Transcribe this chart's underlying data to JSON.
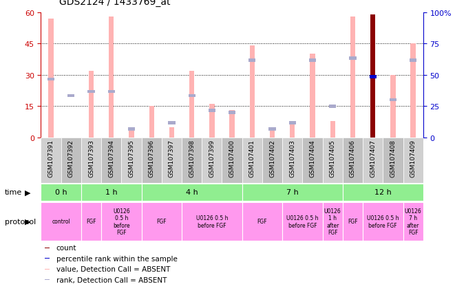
{
  "title": "GDS2124 / 1433769_at",
  "samples": [
    "GSM107391",
    "GSM107392",
    "GSM107393",
    "GSM107394",
    "GSM107395",
    "GSM107396",
    "GSM107397",
    "GSM107398",
    "GSM107399",
    "GSM107400",
    "GSM107401",
    "GSM107402",
    "GSM107403",
    "GSM107404",
    "GSM107405",
    "GSM107406",
    "GSM107407",
    "GSM107408",
    "GSM107409"
  ],
  "pink_values": [
    57,
    0,
    32,
    58,
    5,
    15,
    5,
    32,
    16,
    13,
    44,
    5,
    7,
    40,
    8,
    58,
    0,
    30,
    45
  ],
  "blue_rank_values_left": [
    28,
    20,
    22,
    22,
    4,
    0,
    7,
    20,
    13,
    12,
    37,
    4,
    7,
    37,
    15,
    38,
    0,
    18,
    37
  ],
  "count_value": 59,
  "count_index": 16,
  "percentile_rank_value": 29,
  "percentile_rank_index": 16,
  "ylim_left": [
    0,
    60
  ],
  "ylim_right": [
    0,
    100
  ],
  "yticks_left": [
    0,
    15,
    30,
    45,
    60
  ],
  "yticks_right": [
    0,
    25,
    50,
    75,
    100
  ],
  "time_groups": [
    {
      "label": "0 h",
      "start": 0,
      "end": 1
    },
    {
      "label": "1 h",
      "start": 2,
      "end": 4
    },
    {
      "label": "4 h",
      "start": 5,
      "end": 9
    },
    {
      "label": "7 h",
      "start": 10,
      "end": 14
    },
    {
      "label": "12 h",
      "start": 15,
      "end": 18
    }
  ],
  "protocol_groups": [
    {
      "label": "control",
      "start": 0,
      "end": 1
    },
    {
      "label": "FGF",
      "start": 2,
      "end": 2
    },
    {
      "label": "U0126\n0.5 h\nbefore\nFGF",
      "start": 3,
      "end": 4
    },
    {
      "label": "FGF",
      "start": 5,
      "end": 6
    },
    {
      "label": "U0126 0.5 h\nbefore FGF",
      "start": 7,
      "end": 9
    },
    {
      "label": "FGF",
      "start": 10,
      "end": 11
    },
    {
      "label": "U0126 0.5 h\nbefore FGF",
      "start": 12,
      "end": 13
    },
    {
      "label": "U0126\n1 h\nafter\nFGF",
      "start": 14,
      "end": 14
    },
    {
      "label": "FGF",
      "start": 15,
      "end": 15
    },
    {
      "label": "U0126 0.5 h\nbefore FGF",
      "start": 16,
      "end": 17
    },
    {
      "label": "U0126\n7 h\nafter\nFGF",
      "start": 18,
      "end": 18
    }
  ],
  "pink_color": "#FFB3B3",
  "blue_rank_color": "#AAAACC",
  "count_color": "#8B0000",
  "percentile_color": "#0000CC",
  "time_bg_color": "#90EE90",
  "protocol_color": "#FF99EE",
  "bar_width": 0.25,
  "rank_bar_width": 0.35,
  "left_axis_color": "#CC0000",
  "right_axis_color": "#0000CC",
  "tick_bg_even": "#D0D0D0",
  "tick_bg_odd": "#C0C0C0"
}
